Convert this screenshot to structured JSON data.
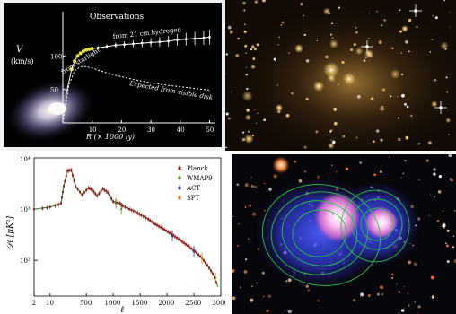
{
  "chart_data": [
    {
      "type": "line",
      "title": "Observations",
      "ylabel_symbol": "V",
      "ylabel_unit": "(km/s)",
      "xlabel": "R  (× 1000 ly)",
      "xlim": [
        0,
        52
      ],
      "ylim": [
        0,
        150
      ],
      "xticks": [
        "10",
        "20",
        "30",
        "40",
        "50"
      ],
      "yticks": [
        "50",
        "100"
      ],
      "annotations": {
        "starlight": "from starlight",
        "hydrogen": "from 21 cm hydrogen",
        "visible": "Expected from visible disk"
      },
      "series": [
        {
          "name": "from starlight",
          "x": [
            3,
            4,
            5,
            6,
            7,
            8,
            9,
            10
          ],
          "y": [
            80,
            92,
            100,
            104,
            107,
            109,
            110,
            111
          ]
        },
        {
          "name": "from 21 cm hydrogen",
          "x": [
            12,
            15,
            18,
            21,
            24,
            27,
            30,
            33,
            36,
            39,
            42,
            45,
            48,
            50
          ],
          "y": [
            112,
            114,
            116,
            117,
            118,
            119,
            120,
            121,
            122,
            124,
            125,
            126,
            127,
            128
          ]
        },
        {
          "name": "Expected from visible disk",
          "x": [
            0,
            2,
            4,
            6,
            8,
            10,
            14,
            18,
            24,
            30,
            36,
            42,
            48,
            50
          ],
          "y": [
            0,
            55,
            78,
            84,
            84,
            82,
            76,
            71,
            65,
            60,
            56,
            53,
            50,
            49
          ]
        }
      ]
    },
    {
      "type": "scatter",
      "ylabel": "𝒟ℓ [μK²]",
      "xlabel": "ℓ",
      "xticks": [
        "2",
        "10",
        "500",
        "1000",
        "1500",
        "2000",
        "2500",
        "3000"
      ],
      "yticks": [
        "10³",
        "10²"
      ],
      "ytop": "10⁴",
      "ylim": [
        20,
        10000
      ],
      "legend_position": "top-right",
      "series": [
        {
          "name": "Planck",
          "color": "#8b1a1a"
        },
        {
          "name": "WMAP9",
          "color": "#5a8a2a"
        },
        {
          "name": "ACT",
          "color": "#2a3aa0"
        },
        {
          "name": "SPT",
          "color": "#d07a20"
        }
      ],
      "spectrum_x": [
        2,
        10,
        30,
        80,
        150,
        220,
        300,
        420,
        540,
        610,
        700,
        810,
        900,
        1000,
        1120,
        1180,
        1300,
        1420,
        1520,
        1650,
        1750,
        1850,
        1950,
        2050,
        2150,
        2250,
        2350,
        2450,
        2550,
        2650,
        2750,
        2850,
        2950
      ],
      "spectrum_y": [
        1000,
        1100,
        1300,
        2800,
        5600,
        5800,
        2800,
        1900,
        2600,
        2400,
        1800,
        2500,
        2100,
        1400,
        1300,
        1150,
        1000,
        880,
        760,
        640,
        530,
        460,
        400,
        340,
        290,
        245,
        205,
        170,
        140,
        110,
        80,
        55,
        30
      ]
    }
  ]
}
